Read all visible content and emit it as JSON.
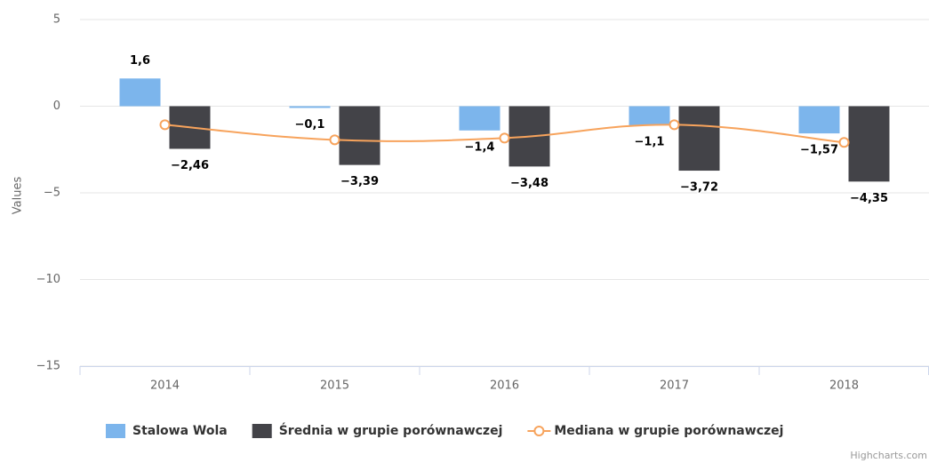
{
  "chart_data": {
    "type": "bar",
    "yaxis_title": "Values",
    "credits": "Highcharts.com",
    "categories": [
      "2014",
      "2015",
      "2016",
      "2017",
      "2018"
    ],
    "ylim": [
      -15,
      5
    ],
    "yticks": [
      {
        "value": -15,
        "label": "−15"
      },
      {
        "value": -10,
        "label": "−10"
      },
      {
        "value": -5,
        "label": "−5"
      },
      0,
      5
    ],
    "grid": true,
    "legend": "bottom",
    "series": [
      {
        "name": "Stalowa Wola",
        "type": "bar",
        "color": "#7cb5ec",
        "values": [
          1.6,
          -0.1,
          -1.4,
          -1.1,
          -1.57
        ],
        "value_labels": [
          "1,6",
          "−0,1",
          "−1,4",
          "−1,1",
          "−1,57"
        ]
      },
      {
        "name": "Średnia w grupie porównawczej",
        "type": "bar",
        "color": "#434348",
        "values": [
          -2.46,
          -3.39,
          -3.48,
          -3.72,
          -4.35
        ],
        "value_labels": [
          "−2,46",
          "−3,39",
          "−3,48",
          "−3,72",
          "−4,35"
        ]
      },
      {
        "name": "Mediana w grupie porównawczej",
        "type": "line",
        "color": "#f7a35c",
        "values": [
          -1.07,
          -1.94,
          -1.84,
          -1.07,
          -2.09
        ]
      }
    ]
  }
}
